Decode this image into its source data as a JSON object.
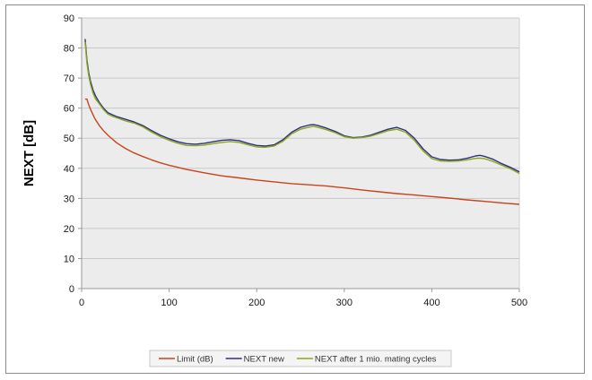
{
  "chart_data": {
    "type": "line",
    "title": "",
    "xlabel": "",
    "ylabel": "NEXT [dB]",
    "xlim": [
      0,
      500
    ],
    "ylim": [
      0,
      90
    ],
    "xticks": [
      "0",
      "100",
      "200",
      "300",
      "400",
      "500"
    ],
    "yticks": [
      "0",
      "10",
      "20",
      "30",
      "40",
      "50",
      "60",
      "70",
      "80",
      "90"
    ],
    "grid": true,
    "legend_position": "bottom",
    "series": [
      {
        "name": "Limit (dB)",
        "color": "#c8441a",
        "x": [
          4,
          6,
          8,
          10,
          15,
          20,
          25,
          30,
          40,
          50,
          60,
          70,
          80,
          90,
          100,
          120,
          140,
          160,
          180,
          200,
          220,
          240,
          260,
          280,
          300,
          320,
          340,
          360,
          380,
          400,
          420,
          440,
          460,
          480,
          500
        ],
        "y": [
          63,
          63,
          61.2,
          59.7,
          56.6,
          54.3,
          52.5,
          51,
          48.5,
          46.6,
          45.1,
          43.9,
          42.8,
          41.8,
          41,
          39.6,
          38.5,
          37.5,
          36.8,
          36.1,
          35.5,
          34.9,
          34.5,
          34.1,
          33.5,
          32.8,
          32.2,
          31.6,
          31.1,
          30.6,
          30.1,
          29.5,
          29,
          28.5,
          28
        ]
      },
      {
        "name": "NEXT new",
        "color": "#2f2f7f",
        "x": [
          4,
          6,
          8,
          10,
          13,
          16,
          20,
          25,
          30,
          35,
          40,
          50,
          60,
          70,
          80,
          90,
          100,
          110,
          120,
          130,
          140,
          150,
          160,
          170,
          180,
          190,
          200,
          210,
          220,
          230,
          240,
          250,
          260,
          265,
          270,
          280,
          290,
          300,
          310,
          320,
          330,
          340,
          350,
          360,
          370,
          380,
          390,
          400,
          410,
          420,
          430,
          440,
          450,
          455,
          460,
          470,
          480,
          490,
          500
        ],
        "y": [
          83,
          76,
          72,
          69,
          66,
          64,
          62,
          60,
          58.5,
          57.8,
          57.2,
          56.3,
          55.4,
          54.2,
          52.5,
          51,
          49.8,
          48.8,
          48.2,
          48,
          48.3,
          48.8,
          49.3,
          49.5,
          49.2,
          48.3,
          47.6,
          47.4,
          47.8,
          49.5,
          52,
          53.6,
          54.4,
          54.5,
          54.2,
          53.3,
          52.2,
          50.8,
          50.2,
          50.4,
          51,
          52,
          53,
          53.6,
          52.6,
          50,
          46.5,
          43.8,
          42.9,
          42.7,
          42.8,
          43.3,
          44.1,
          44.3,
          44,
          43,
          41.5,
          40.3,
          38.8
        ]
      },
      {
        "name": "NEXT after 1 mio. mating cycles",
        "color": "#8aa61c",
        "x": [
          4,
          6,
          8,
          10,
          13,
          16,
          20,
          25,
          30,
          35,
          40,
          50,
          60,
          70,
          80,
          90,
          100,
          110,
          120,
          130,
          140,
          150,
          160,
          170,
          180,
          190,
          200,
          210,
          220,
          230,
          240,
          250,
          260,
          265,
          270,
          280,
          290,
          300,
          310,
          320,
          330,
          340,
          350,
          360,
          370,
          380,
          390,
          400,
          410,
          420,
          430,
          440,
          450,
          455,
          460,
          470,
          480,
          490,
          500
        ],
        "y": [
          82,
          75,
          71,
          68,
          65,
          63,
          61.5,
          59.5,
          58,
          57.3,
          56.8,
          55.8,
          55,
          53.8,
          52,
          50.5,
          49.3,
          48.3,
          47.6,
          47.5,
          47.7,
          48.2,
          48.6,
          48.9,
          48.6,
          47.8,
          47.1,
          47,
          47.4,
          49,
          51.5,
          53,
          53.7,
          53.9,
          53.6,
          52.8,
          51.8,
          50.5,
          50,
          50.2,
          50.7,
          51.6,
          52.5,
          53,
          52,
          49.3,
          45.8,
          43.2,
          42.4,
          42.3,
          42.4,
          42.8,
          43.3,
          43.4,
          43.2,
          42.3,
          41,
          39.8,
          38.3
        ]
      }
    ]
  }
}
